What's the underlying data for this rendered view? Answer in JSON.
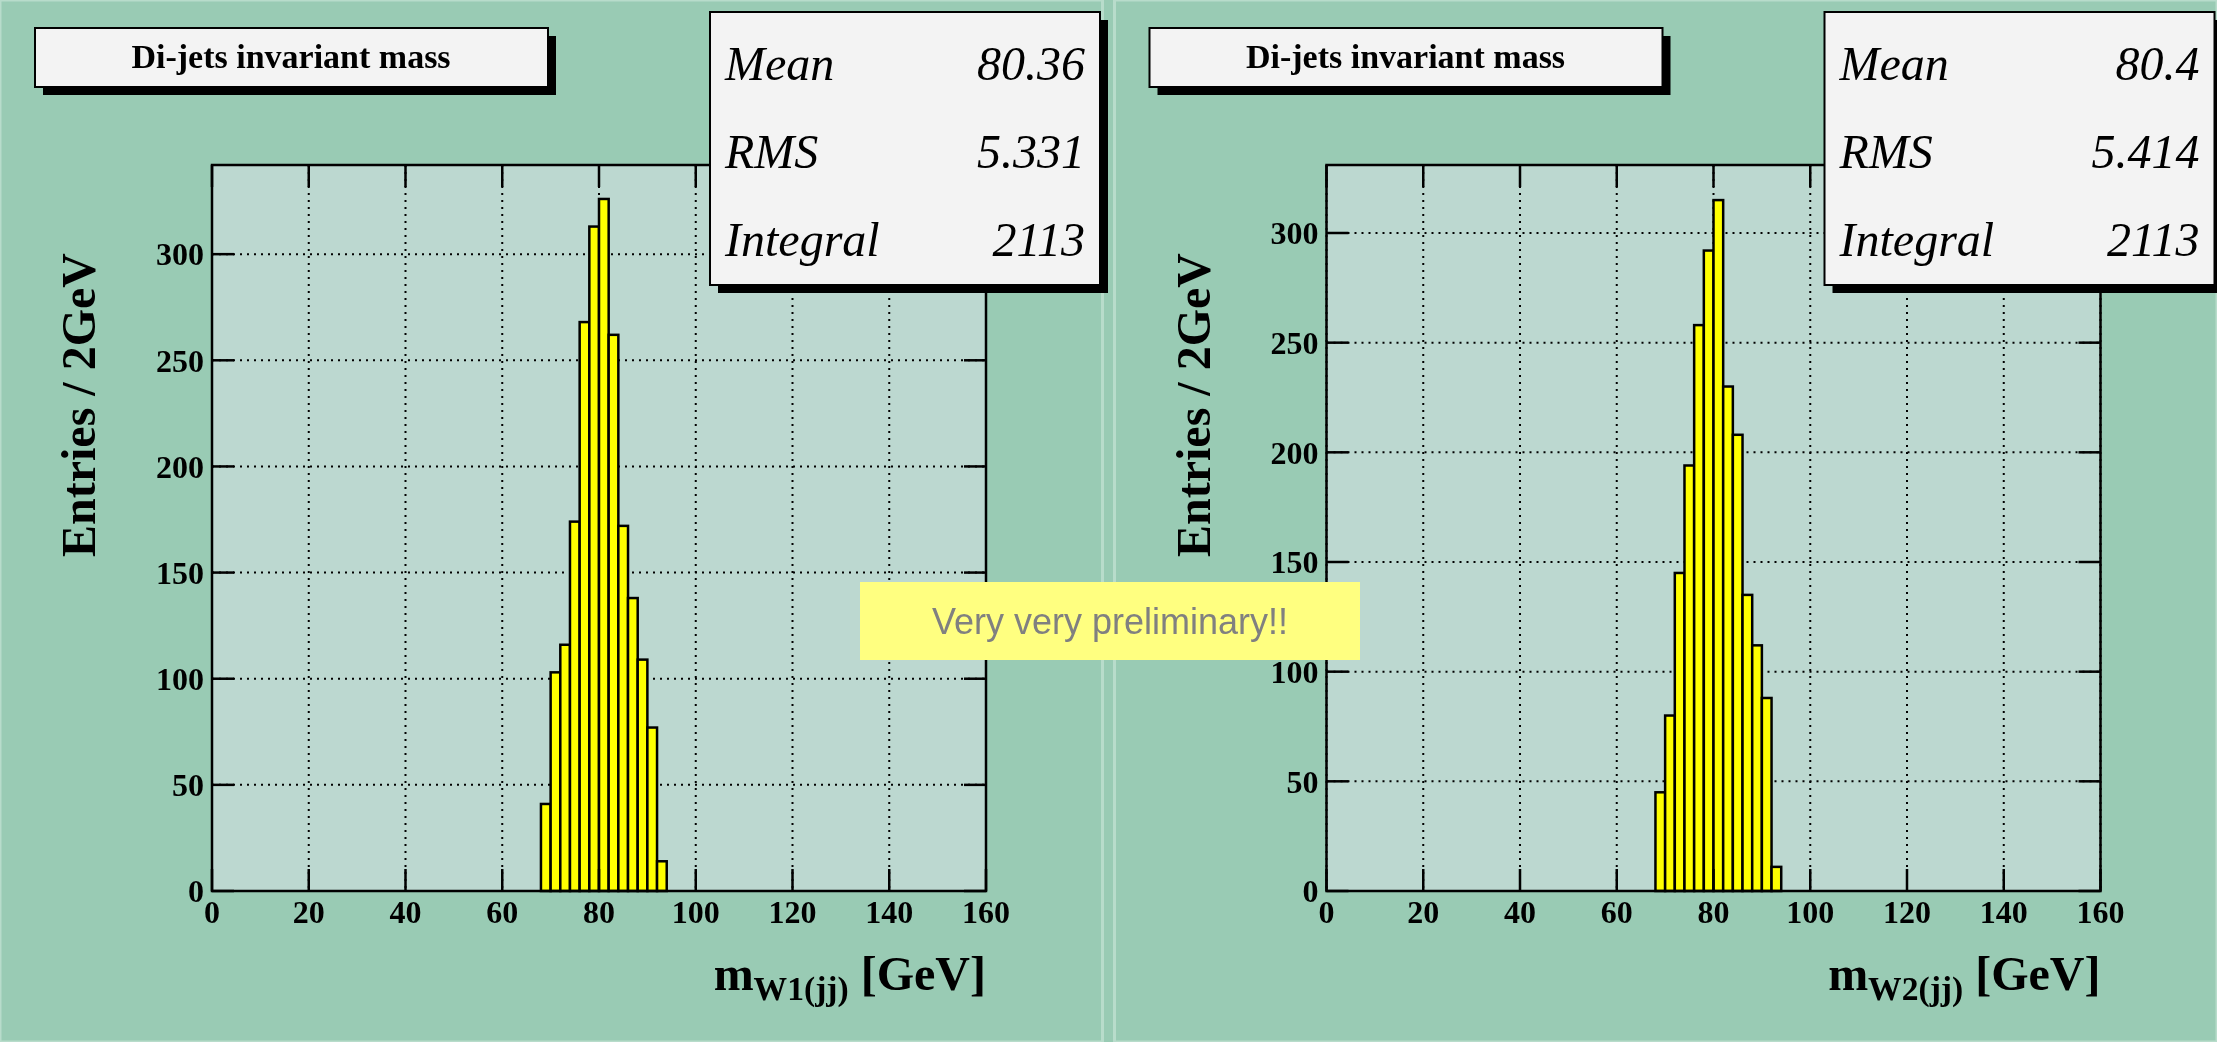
{
  "chart_data": [
    {
      "type": "histogram",
      "title": "Di-jets invariant mass",
      "xlabel": "m$_{W1(jj)}$ [GeV]",
      "ylabel": "Entries / 2GeV",
      "bins": [
        68,
        70,
        72,
        74,
        76,
        78,
        80,
        82,
        84,
        86,
        88,
        90,
        92,
        94
      ],
      "values": [
        41,
        103,
        116,
        174,
        268,
        313,
        326,
        262,
        172,
        138,
        109,
        77,
        14
      ],
      "color": "#ffff00",
      "xlim": [
        0,
        160
      ],
      "xticks": [
        0,
        20,
        40,
        60,
        80,
        100,
        120,
        140,
        160
      ],
      "ylim": [
        0,
        342
      ],
      "yticks": [
        0,
        50,
        100,
        150,
        200,
        250,
        300
      ],
      "grid": true,
      "annotations": [
        "Mean",
        "80.36",
        "RMS",
        "5.331",
        "Integral",
        "2113",
        "Very very preliminary!!"
      ]
    },
    {
      "type": "histogram",
      "title": "Di-jets invariant mass",
      "xlabel": "m$_{W2(jj)}$ [GeV]",
      "ylabel": "Entries / 2GeV",
      "bins": [
        68,
        70,
        72,
        74,
        76,
        78,
        80,
        82,
        84,
        86,
        88,
        90,
        92,
        94
      ],
      "values": [
        45,
        80,
        145,
        194,
        258,
        292,
        315,
        230,
        208,
        135,
        112,
        88,
        11
      ],
      "color": "#ffff00",
      "xlim": [
        0,
        160
      ],
      "xticks": [
        0,
        20,
        40,
        60,
        80,
        100,
        120,
        140,
        160
      ],
      "ylim": [
        0,
        331
      ],
      "yticks": [
        0,
        50,
        100,
        150,
        200,
        250,
        300
      ],
      "grid": true,
      "annotations": [
        "Mean",
        "80.4",
        "RMS",
        "5.414",
        "Integral",
        "2113"
      ]
    }
  ]
}
